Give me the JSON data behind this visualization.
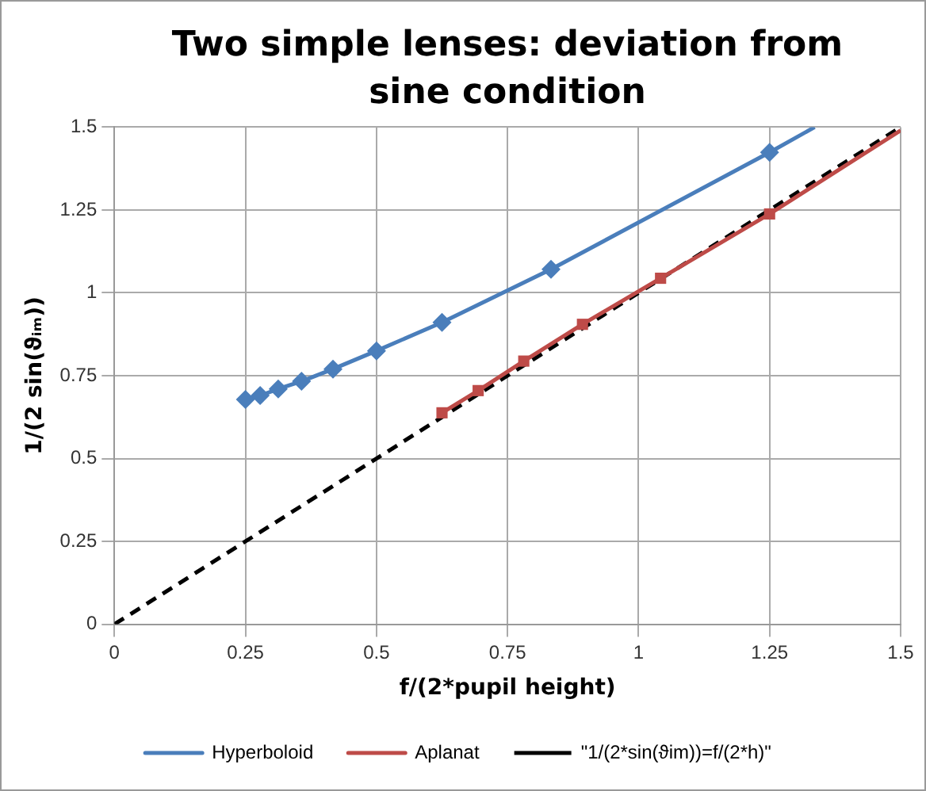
{
  "chart_data": {
    "type": "line",
    "title": "Two simple lenses: deviation from sine condition",
    "xlabel": "f/(2*pupil height)",
    "ylabel": "1/(2 sin(ϑᵢₘ))",
    "xlim": [
      0,
      1.5
    ],
    "xticks": [
      0,
      0.25,
      0.5,
      0.75,
      1,
      1.25,
      1.5
    ],
    "ylim": [
      0,
      1.5
    ],
    "yticks": [
      0,
      0.25,
      0.5,
      0.75,
      1,
      1.25,
      1.5
    ],
    "grid": true,
    "legend": "bottom",
    "series": [
      {
        "name": "Hyperboloid",
        "color": "#4a7ebb",
        "marker": "diamond",
        "line_style": "solid",
        "x": [
          0.25,
          0.278,
          0.3125,
          0.357,
          0.417,
          0.5,
          0.625,
          0.833,
          1.25,
          1.336
        ],
        "values": [
          0.678,
          0.69,
          0.71,
          0.733,
          0.77,
          0.825,
          0.911,
          1.071,
          1.424,
          1.5
        ]
      },
      {
        "name": "Aplanat",
        "color": "#be4b48",
        "marker": "square",
        "line_style": "solid",
        "x": [
          0.625,
          0.694,
          0.781,
          0.893,
          1.042,
          1.25,
          1.5
        ],
        "values": [
          0.638,
          0.705,
          0.794,
          0.905,
          1.044,
          1.238,
          1.49
        ]
      },
      {
        "name": "\"1/(2*sin(ϑim))=f/(2*h)\"",
        "color": "#000000",
        "marker": "none",
        "line_style": "dashed",
        "x": [
          0,
          1.5
        ],
        "values": [
          0,
          1.5
        ]
      }
    ]
  }
}
